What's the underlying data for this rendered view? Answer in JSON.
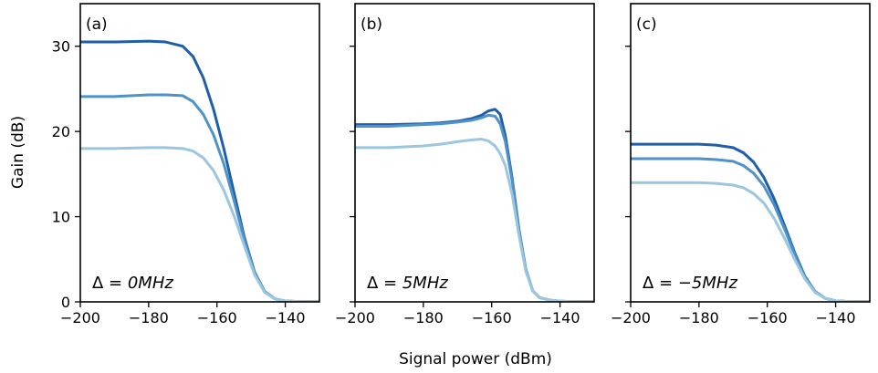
{
  "figure": {
    "xlabel": "Signal power (dBm)",
    "ylabel": "Gain (dB)",
    "colors": [
      "#1f5ea8",
      "#4f92c8",
      "#9ac6e0"
    ]
  },
  "chart_data": [
    {
      "type": "line",
      "tag": "(a)",
      "annotation": "Δ = 0MHz",
      "annotation_parts": {
        "symbol": "Δ = ",
        "value": "0MHz"
      },
      "xlim": [
        -200,
        -130
      ],
      "ylim": [
        0,
        35
      ],
      "xticks": [
        -200,
        -180,
        -160,
        -140
      ],
      "yticks": [
        0,
        10,
        20,
        30
      ],
      "xtick_labels": [
        "−200",
        "−180",
        "−160",
        "−140"
      ],
      "ytick_labels": [
        "0",
        "10",
        "20",
        "30"
      ],
      "x": [
        -200,
        -190,
        -180,
        -175,
        -170,
        -167,
        -164,
        -161,
        -158,
        -155,
        -152,
        -149,
        -146,
        -143,
        -140,
        -137,
        -134,
        -130
      ],
      "series": [
        {
          "values": [
            30.5,
            30.5,
            30.6,
            30.5,
            30.0,
            28.8,
            26.3,
            22.6,
            18.0,
            12.8,
            7.6,
            3.5,
            1.2,
            0.35,
            0.1,
            0.05,
            0.02,
            0.02
          ]
        },
        {
          "values": [
            24.1,
            24.1,
            24.3,
            24.3,
            24.2,
            23.5,
            22.0,
            19.6,
            16.2,
            11.9,
            7.3,
            3.4,
            1.2,
            0.35,
            0.1,
            0.05,
            0.02,
            0.02
          ]
        },
        {
          "values": [
            18.0,
            18.0,
            18.1,
            18.1,
            18.0,
            17.7,
            16.9,
            15.4,
            13.1,
            10.1,
            6.6,
            3.2,
            1.1,
            0.35,
            0.1,
            0.05,
            0.02,
            0.02
          ]
        }
      ]
    },
    {
      "type": "line",
      "tag": "(b)",
      "annotation": "Δ = 5MHz",
      "annotation_parts": {
        "symbol": "Δ = ",
        "value": "5MHz"
      },
      "xlim": [
        -200,
        -130
      ],
      "ylim": [
        0,
        35
      ],
      "xticks": [
        -200,
        -180,
        -160,
        -140
      ],
      "yticks": [
        0,
        10,
        20,
        30
      ],
      "xtick_labels": [
        "−200",
        "−180",
        "−160",
        "−140"
      ],
      "ytick_labels": [],
      "x": [
        -200,
        -190,
        -180,
        -175,
        -170,
        -166,
        -163,
        -161,
        -159,
        -157.5,
        -156,
        -154,
        -152,
        -150,
        -148,
        -146,
        -143,
        -140,
        -137,
        -134,
        -130
      ],
      "series": [
        {
          "values": [
            20.8,
            20.8,
            20.9,
            21.0,
            21.2,
            21.5,
            21.9,
            22.4,
            22.6,
            22.0,
            19.5,
            14.5,
            8.5,
            3.8,
            1.3,
            0.5,
            0.2,
            0.08,
            0.04,
            0.02,
            0.02
          ]
        },
        {
          "values": [
            20.6,
            20.6,
            20.8,
            20.9,
            21.1,
            21.3,
            21.6,
            21.9,
            21.8,
            20.9,
            18.8,
            14.2,
            8.4,
            3.8,
            1.3,
            0.5,
            0.2,
            0.08,
            0.04,
            0.02,
            0.02
          ]
        },
        {
          "values": [
            18.1,
            18.1,
            18.3,
            18.5,
            18.8,
            19.0,
            19.1,
            18.9,
            18.3,
            17.4,
            16.0,
            12.6,
            7.8,
            3.6,
            1.3,
            0.5,
            0.2,
            0.08,
            0.04,
            0.02,
            0.02
          ]
        }
      ]
    },
    {
      "type": "line",
      "tag": "(c)",
      "annotation": "Δ = −5MHz",
      "annotation_parts": {
        "symbol": "Δ = ",
        "value": "−5MHz"
      },
      "xlim": [
        -200,
        -130
      ],
      "ylim": [
        0,
        35
      ],
      "xticks": [
        -200,
        -180,
        -160,
        -140
      ],
      "yticks": [
        0,
        10,
        20,
        30
      ],
      "xtick_labels": [
        "−200",
        "−180",
        "−160",
        "−140"
      ],
      "ytick_labels": [],
      "x": [
        -200,
        -190,
        -180,
        -175,
        -170,
        -167,
        -164,
        -161,
        -158,
        -155,
        -152,
        -149,
        -146,
        -143,
        -140,
        -137,
        -134,
        -130
      ],
      "series": [
        {
          "values": [
            18.5,
            18.5,
            18.5,
            18.4,
            18.1,
            17.5,
            16.4,
            14.6,
            12.1,
            9.0,
            5.8,
            3.0,
            1.2,
            0.4,
            0.12,
            0.05,
            0.02,
            0.02
          ]
        },
        {
          "values": [
            16.8,
            16.8,
            16.8,
            16.7,
            16.5,
            16.0,
            15.1,
            13.6,
            11.4,
            8.6,
            5.6,
            2.9,
            1.2,
            0.4,
            0.12,
            0.05,
            0.02,
            0.02
          ]
        },
        {
          "values": [
            14.0,
            14.0,
            14.0,
            13.9,
            13.7,
            13.4,
            12.7,
            11.6,
            9.8,
            7.5,
            5.0,
            2.7,
            1.1,
            0.4,
            0.12,
            0.05,
            0.02,
            0.02
          ]
        }
      ]
    }
  ]
}
